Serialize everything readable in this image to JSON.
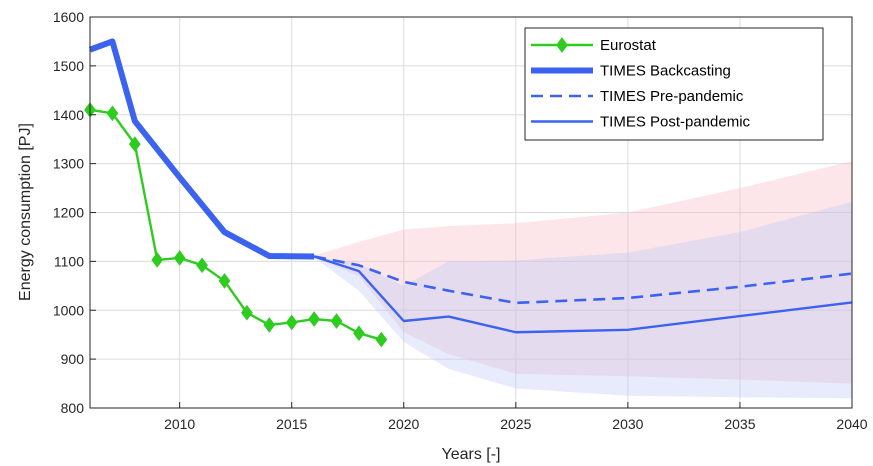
{
  "chart_data": {
    "type": "line",
    "xlabel": "Years [-]",
    "ylabel": "Energy consumption [PJ]",
    "xlim": [
      2006,
      2040
    ],
    "ylim": [
      800,
      1600
    ],
    "xticks": [
      2010,
      2015,
      2020,
      2025,
      2030,
      2035,
      2040
    ],
    "yticks": [
      800,
      900,
      1000,
      1100,
      1200,
      1300,
      1400,
      1500,
      1600
    ],
    "grid": true,
    "legend_position": "top-right",
    "series": [
      {
        "name": "Eurostat",
        "style": "solid-diamond-markers",
        "color": "#2ecc1f",
        "x": [
          2006,
          2007,
          2008,
          2009,
          2010,
          2011,
          2012,
          2013,
          2014,
          2015,
          2016,
          2017,
          2018,
          2019
        ],
        "y": [
          1410,
          1403,
          1340,
          1103,
          1107,
          1092,
          1060,
          995,
          970,
          975,
          982,
          978,
          953,
          940
        ]
      },
      {
        "name": "TIMES Backcasting",
        "style": "thick-solid",
        "color": "#3b63f0",
        "x": [
          2006,
          2007,
          2008,
          2010,
          2012,
          2014,
          2016
        ],
        "y": [
          1533,
          1550,
          1387,
          1272,
          1160,
          1111,
          1110
        ]
      },
      {
        "name": "TIMES Pre-pandemic",
        "style": "dashed",
        "color": "#3b63f0",
        "x": [
          2016,
          2018,
          2020,
          2022,
          2025,
          2030,
          2035,
          2040
        ],
        "y": [
          1110,
          1092,
          1058,
          1040,
          1015,
          1025,
          1048,
          1075
        ]
      },
      {
        "name": "TIMES Post-pandemic",
        "style": "solid",
        "color": "#3b63f0",
        "x": [
          2016,
          2018,
          2020,
          2022,
          2025,
          2030,
          2035,
          2040
        ],
        "y": [
          1110,
          1080,
          978,
          987,
          955,
          960,
          988,
          1016
        ]
      }
    ],
    "uncertainty_bands": [
      {
        "color": "#f7b7c4",
        "x": [
          2016,
          2018,
          2020,
          2022,
          2025,
          2030,
          2035,
          2040
        ],
        "upper": [
          1112,
          1140,
          1165,
          1172,
          1178,
          1200,
          1250,
          1305
        ],
        "lower": [
          1108,
          1070,
          955,
          910,
          870,
          865,
          858,
          850
        ]
      },
      {
        "color": "#b9c6f7",
        "x": [
          2016,
          2018,
          2020,
          2022,
          2025,
          2030,
          2035,
          2040
        ],
        "upper": [
          1110,
          1095,
          1050,
          1100,
          1102,
          1118,
          1160,
          1222
        ],
        "lower": [
          1108,
          1040,
          935,
          880,
          840,
          825,
          822,
          820
        ]
      }
    ]
  }
}
